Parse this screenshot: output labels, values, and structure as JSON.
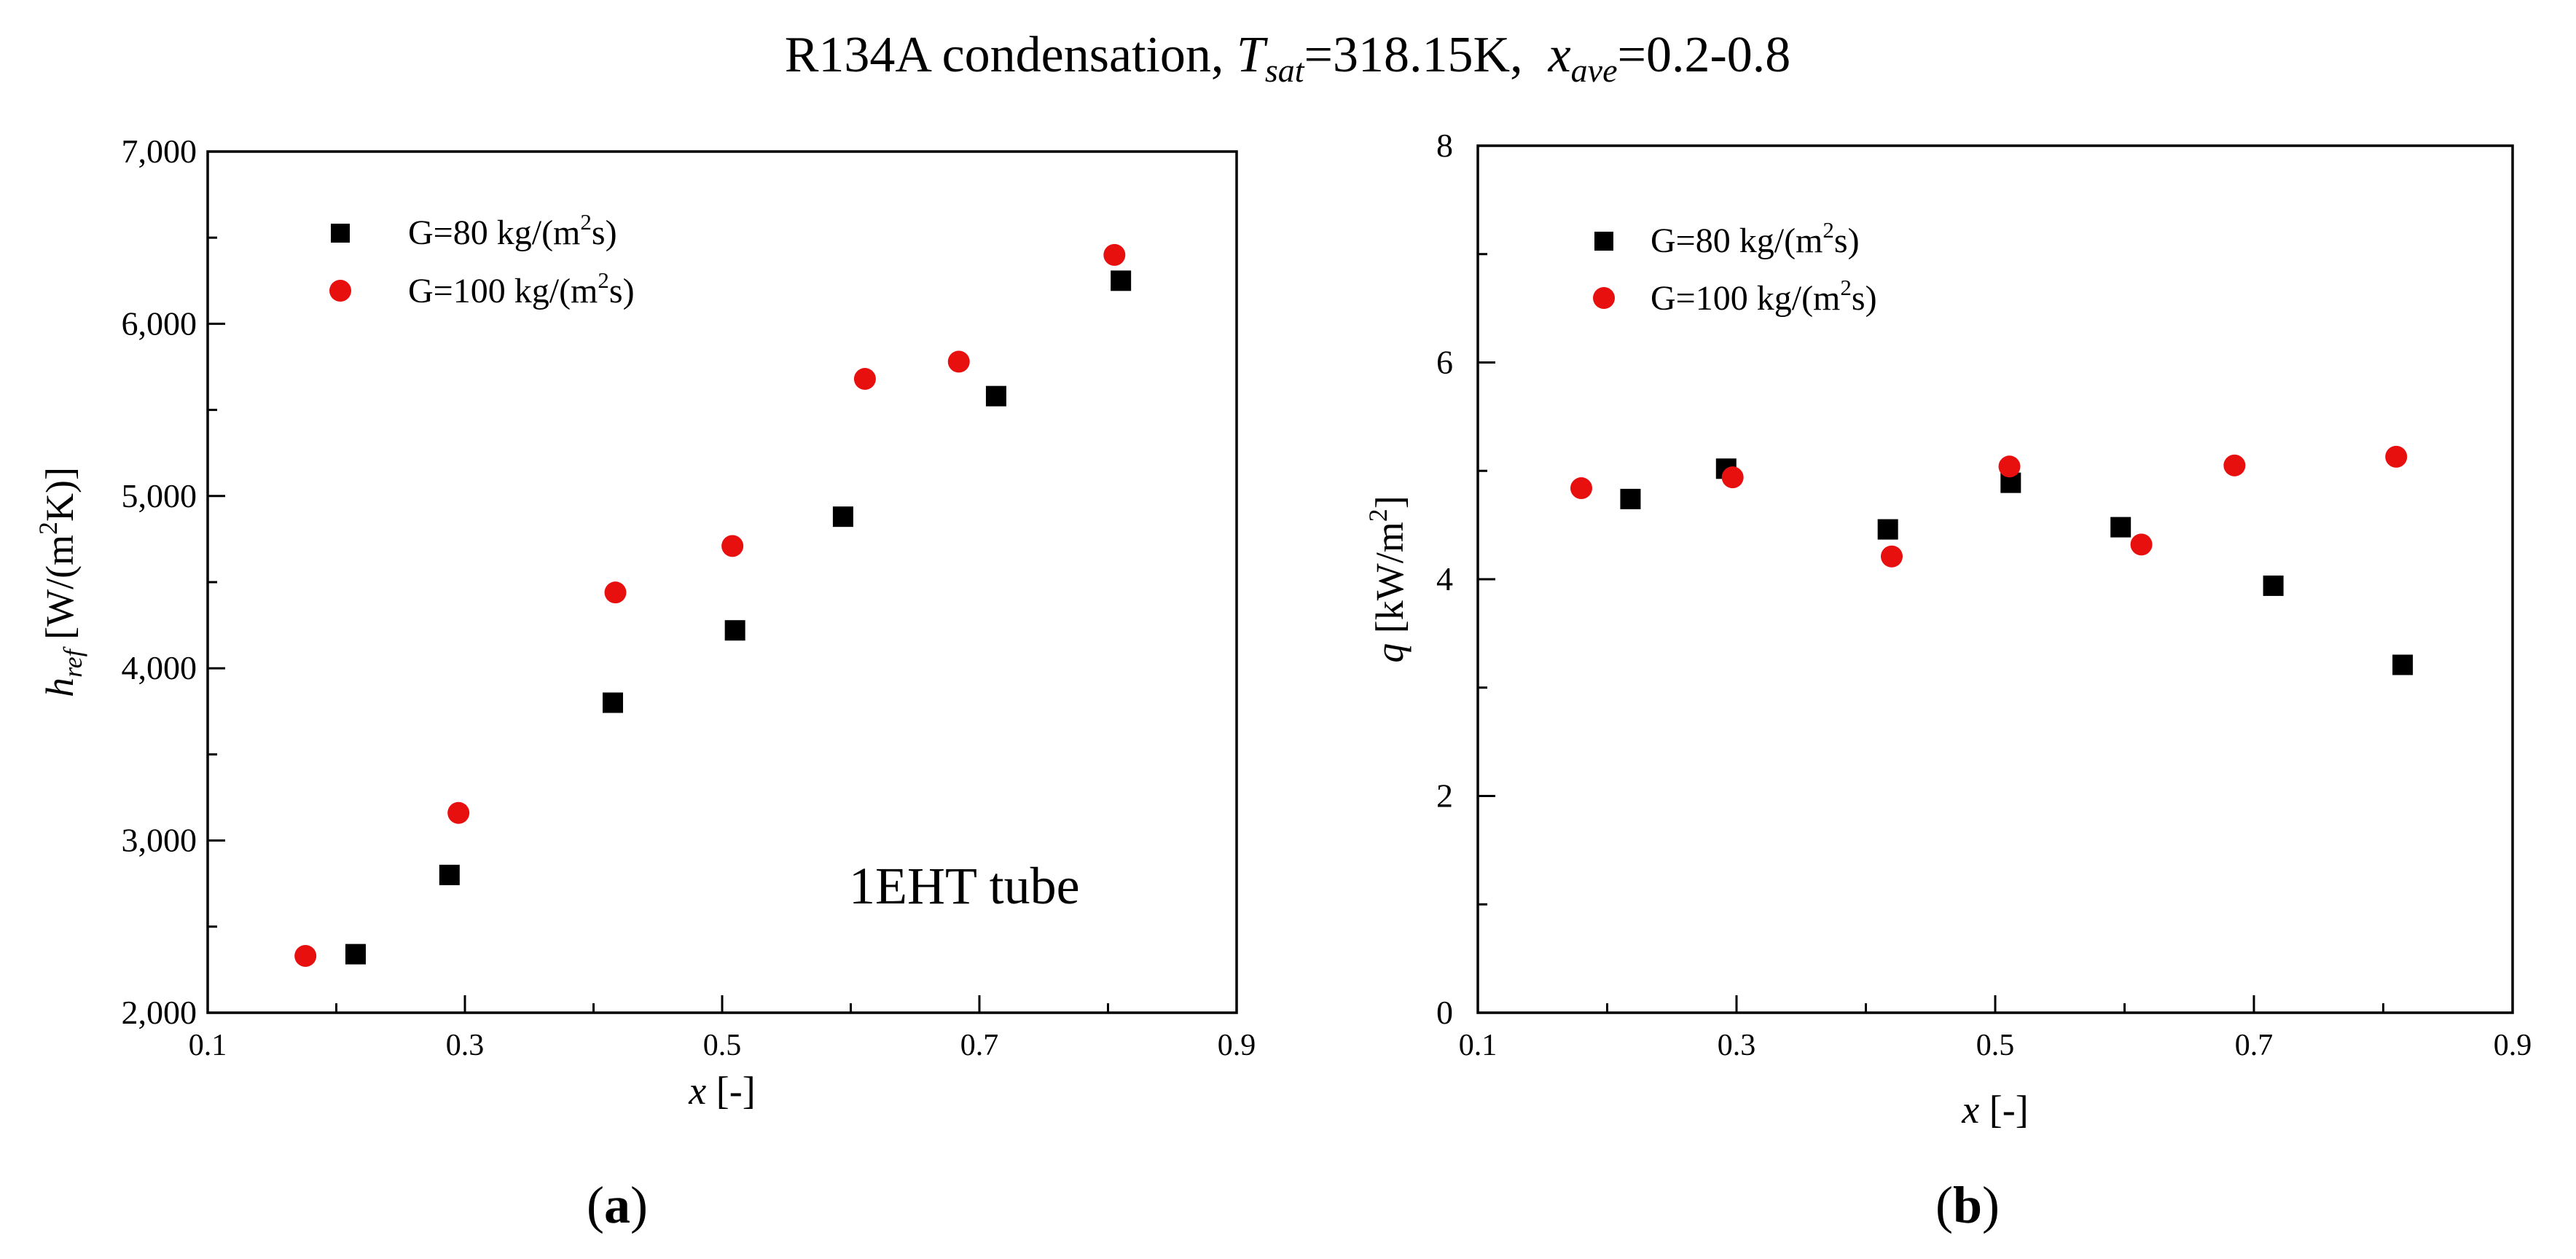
{
  "figure_title": {
    "prefix": "R134A condensation, ",
    "t_symbol": "T",
    "t_sub": "sat",
    "t_value": "=318.15K,  ",
    "x_symbol": "x",
    "x_sub": "ave",
    "x_value": "=0.2-0.8"
  },
  "colors": {
    "series_80": "#000000",
    "series_100": "#e8100f"
  },
  "chart_data": [
    {
      "type": "scatter",
      "panel_label": "a",
      "annotation": "1EHT tube",
      "legend_position": "top-left",
      "xlabel": {
        "symbol": "x",
        "unit": " [-]"
      },
      "ylabel": {
        "symbol": "h",
        "sub": "ref",
        "unit": " [W/(m",
        "sup": "2",
        "unit_end": "K)]"
      },
      "xlim": [
        0.1,
        0.9
      ],
      "ylim": [
        2000,
        7000
      ],
      "xticks": [
        0.1,
        0.3,
        0.5,
        0.7,
        0.9
      ],
      "xtick_labels": [
        "0.1",
        "0.3",
        "0.5",
        "0.7",
        "0.9"
      ],
      "yticks": [
        2000,
        3000,
        4000,
        5000,
        6000,
        7000
      ],
      "ytick_labels": [
        "2,000",
        "3,000",
        "4,000",
        "5,000",
        "6,000",
        "7,000"
      ],
      "series": [
        {
          "name": "G=80",
          "label_prefix": "G=80 kg/(m",
          "label_sup": "2",
          "label_suffix": "s)",
          "marker": "square",
          "color_key": "series_80",
          "x": [
            0.215,
            0.288,
            0.415,
            0.51,
            0.594,
            0.713,
            0.81
          ],
          "y": [
            2340,
            2800,
            3800,
            4220,
            4880,
            5580,
            6250
          ]
        },
        {
          "name": "G=100",
          "label_prefix": "G=100 kg/(m",
          "label_sup": "2",
          "label_suffix": "s)",
          "marker": "circle",
          "color_key": "series_100",
          "x": [
            0.176,
            0.295,
            0.417,
            0.508,
            0.611,
            0.684,
            0.805
          ],
          "y": [
            2330,
            3160,
            4440,
            4710,
            5680,
            5780,
            6400
          ]
        }
      ]
    },
    {
      "type": "scatter",
      "panel_label": "b",
      "legend_position": "top-left",
      "xlabel": {
        "symbol": "x",
        "unit": " [-]"
      },
      "ylabel": {
        "symbol": "q",
        "unit": " [kW/m",
        "sup": "2",
        "unit_end": "]"
      },
      "xlim": [
        0.1,
        0.9
      ],
      "ylim": [
        0,
        8
      ],
      "xticks": [
        0.1,
        0.3,
        0.5,
        0.7,
        0.9
      ],
      "xtick_labels": [
        "0.1",
        "0.3",
        "0.5",
        "0.7",
        "0.9"
      ],
      "yticks": [
        0,
        2,
        4,
        6,
        8
      ],
      "ytick_labels": [
        "0",
        "2",
        "4",
        "6",
        "8"
      ],
      "series": [
        {
          "name": "G=80",
          "label_prefix": "G=80 kg/(m",
          "label_sup": "2",
          "label_suffix": "s)",
          "marker": "square",
          "color_key": "series_80",
          "x": [
            0.218,
            0.292,
            0.417,
            0.512,
            0.597,
            0.715,
            0.815
          ],
          "y": [
            4.74,
            5.02,
            4.46,
            4.89,
            4.48,
            3.94,
            3.21
          ]
        },
        {
          "name": "G=100",
          "label_prefix": "G=100 kg/(m",
          "label_sup": "2",
          "label_suffix": "s)",
          "marker": "circle",
          "color_key": "series_100",
          "x": [
            0.18,
            0.297,
            0.42,
            0.511,
            0.613,
            0.685,
            0.81
          ],
          "y": [
            4.84,
            4.94,
            4.21,
            5.04,
            4.32,
            5.05,
            5.13
          ]
        }
      ]
    }
  ]
}
